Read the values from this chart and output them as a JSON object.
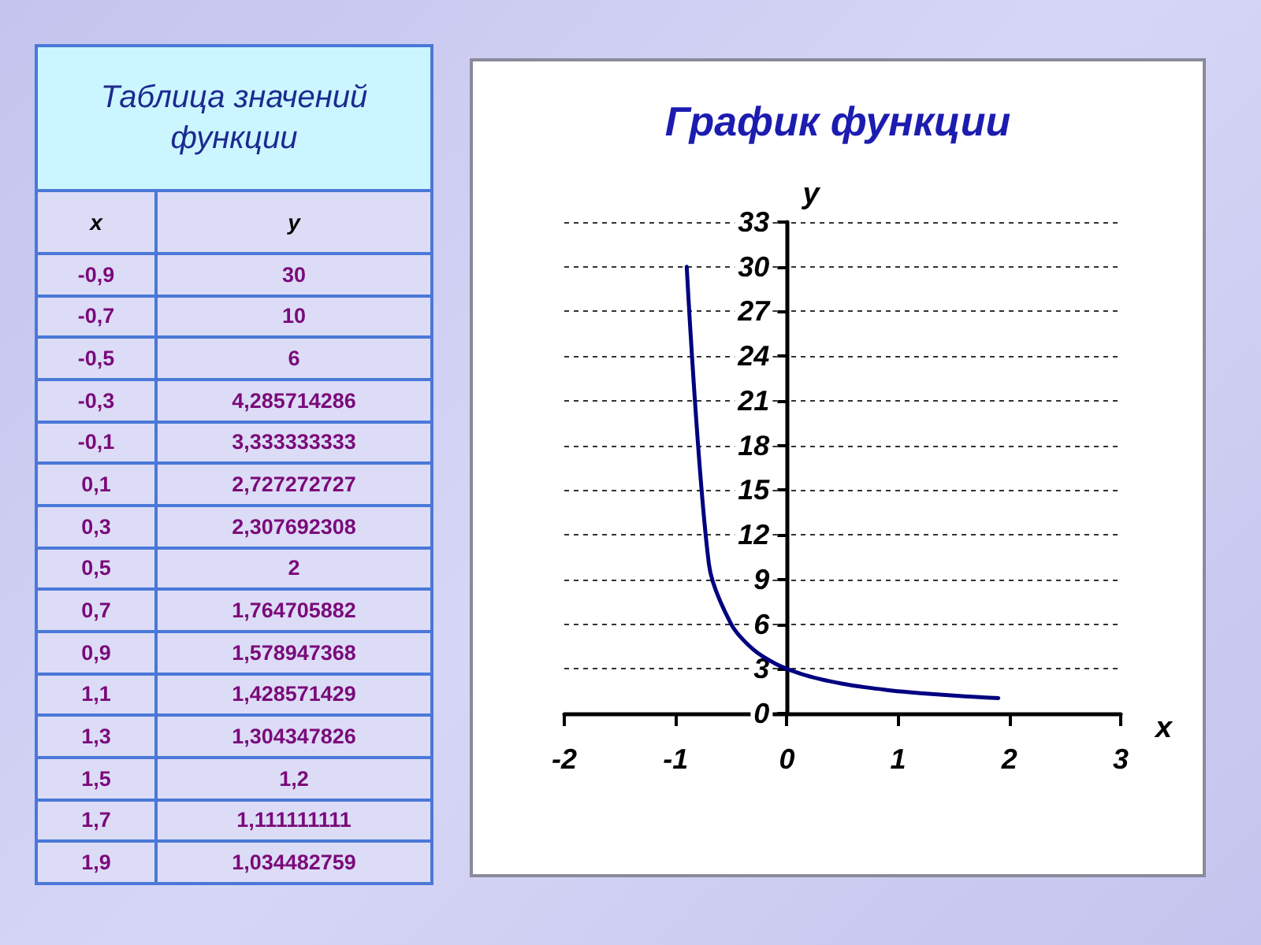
{
  "chart_data": [
    {
      "type": "heatmap",
      "title": "Таблица значений функции",
      "ylabel": "x",
      "categories": [
        "y"
      ],
      "y_categories": [
        "-0,9",
        "-0,7",
        "-0,5",
        "-0,3",
        "-0,1",
        "0,1",
        "0,3",
        "0,5",
        "0,7",
        "0,9",
        "1,1",
        "1,3",
        "1,5",
        "1,7",
        "1,9"
      ],
      "cells": [
        [
          null
        ],
        [
          null
        ],
        [
          null
        ],
        [
          null
        ],
        [
          null
        ],
        [
          null
        ],
        [
          null
        ],
        [
          null
        ],
        [
          null
        ],
        [
          null
        ],
        [
          null
        ],
        [
          null
        ],
        [
          null
        ],
        [
          null
        ],
        [
          null
        ]
      ],
      "cell_labels": [
        [
          "30"
        ],
        [
          "10"
        ],
        [
          "6"
        ],
        [
          "4,285714286"
        ],
        [
          "3,333333333"
        ],
        [
          "2,727272727"
        ],
        [
          "2,307692308"
        ],
        [
          "2"
        ],
        [
          "1,764705882"
        ],
        [
          "1,578947368"
        ],
        [
          "1,428571429"
        ],
        [
          "1,304347826"
        ],
        [
          "1,2"
        ],
        [
          "1,111111111"
        ],
        [
          "1,034482759"
        ]
      ]
    },
    {
      "type": "line",
      "title": "График функции",
      "xlabel": "x",
      "ylabel": "y",
      "x": [
        -0.9,
        -0.7,
        -0.5,
        -0.3,
        -0.1,
        0.1,
        0.3,
        0.5,
        0.7,
        0.9,
        1.1,
        1.3,
        1.5,
        1.7,
        1.9
      ],
      "values": [
        30,
        10,
        6,
        4.285714286,
        3.333333333,
        2.727272727,
        2.307692308,
        2,
        1.764705882,
        1.578947368,
        1.428571429,
        1.304347826,
        1.2,
        1.111111111,
        1.034482759
      ],
      "color": "#000080",
      "marker": "none",
      "line_style": "solid",
      "xlim": [
        -2,
        3
      ],
      "xticks": [
        -2,
        -1,
        0,
        1,
        2,
        3
      ],
      "ylim": [
        0,
        33
      ],
      "yticks": [
        0,
        3,
        6,
        9,
        12,
        15,
        18,
        21,
        24,
        27,
        30,
        33
      ],
      "grid": "y"
    }
  ]
}
